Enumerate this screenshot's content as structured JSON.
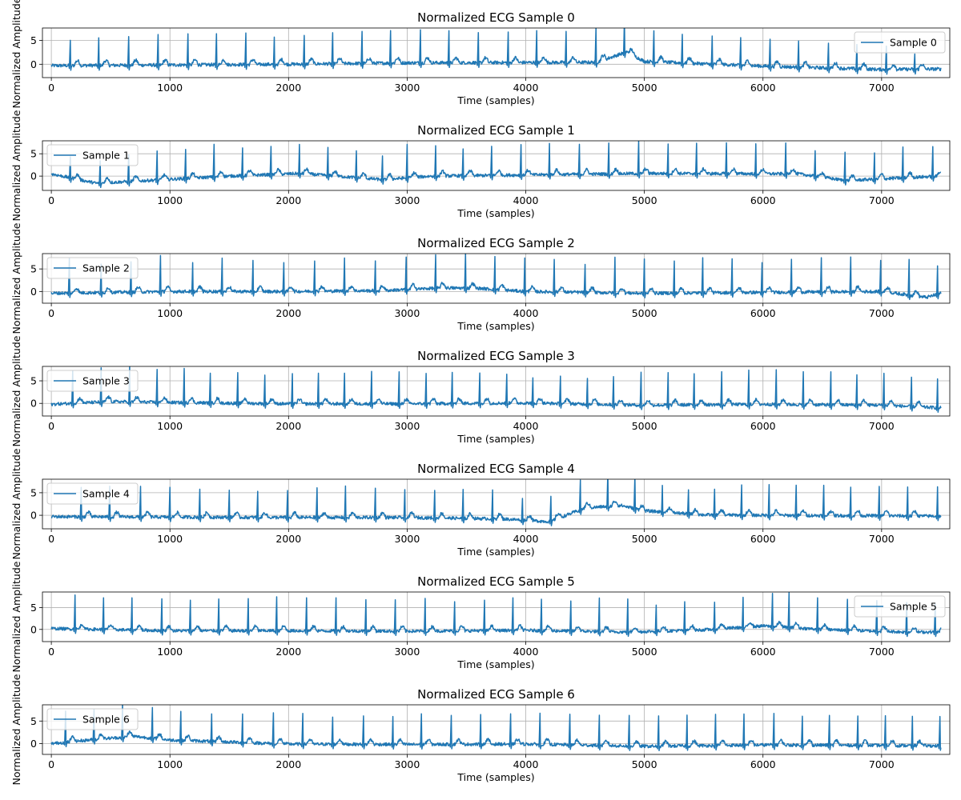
{
  "chart_data": [
    {
      "type": "line",
      "title": "Normalized ECG Sample 0",
      "xlabel": "Time (samples)",
      "ylabel": "Normalized Amplitude",
      "xlim": [
        -75,
        7575
      ],
      "ylim": [
        -2.8,
        7.6
      ],
      "xticks": [
        0,
        1000,
        2000,
        3000,
        4000,
        5000,
        6000,
        7000
      ],
      "yticks": [
        0,
        5
      ],
      "grid": true,
      "legend_position": "upper-right",
      "series": [
        {
          "name": "Sample 0",
          "color": "#1f77b4",
          "beats": [
            160,
            400,
            650,
            900,
            1150,
            1390,
            1640,
            1880,
            2130,
            2370,
            2620,
            2860,
            3110,
            3350,
            3600,
            3850,
            4090,
            4340,
            4590,
            4830,
            5080,
            5320,
            5570,
            5810,
            6060,
            6300,
            6550,
            6790,
            7040,
            7280
          ],
          "r_amp": [
            5.3,
            5.8,
            6.0,
            6.4,
            6.5,
            6.5,
            6.6,
            5.7,
            6.0,
            6.5,
            6.7,
            6.8,
            6.9,
            6.7,
            6.3,
            6.4,
            6.7,
            6.5,
            7.2,
            7.2,
            6.5,
            6.0,
            5.9,
            5.8,
            5.7,
            5.5,
            5.2,
            5.1,
            4.9,
            3.2
          ],
          "baseline": [
            [
              0,
              -0.3
            ],
            [
              2000,
              0.0
            ],
            [
              3000,
              0.3
            ],
            [
              4600,
              0.4
            ],
            [
              4850,
              2.6
            ],
            [
              5000,
              0.6
            ],
            [
              6000,
              -0.4
            ],
            [
              7000,
              -1.1
            ],
            [
              7500,
              -1.0
            ]
          ]
        }
      ]
    },
    {
      "type": "line",
      "title": "Normalized ECG Sample 1",
      "xlabel": "Time (samples)",
      "ylabel": "Normalized Amplitude",
      "xlim": [
        -75,
        7575
      ],
      "ylim": [
        -3.2,
        7.9
      ],
      "xticks": [
        0,
        1000,
        2000,
        3000,
        4000,
        5000,
        6000,
        7000
      ],
      "yticks": [
        0,
        5
      ],
      "grid": true,
      "legend_position": "upper-left",
      "series": [
        {
          "name": "Sample 1",
          "color": "#1f77b4",
          "beats": [
            160,
            410,
            650,
            890,
            1130,
            1370,
            1610,
            1850,
            2090,
            2330,
            2570,
            2790,
            3000,
            3240,
            3470,
            3710,
            3960,
            4200,
            4450,
            4700,
            4950,
            5200,
            5440,
            5690,
            5940,
            6190,
            6440,
            6690,
            6940,
            7180,
            7430
          ],
          "r_amp": [
            4.7,
            5.0,
            6.0,
            6.5,
            6.5,
            7.3,
            6.2,
            6.3,
            6.5,
            6.3,
            6.0,
            5.3,
            7.5,
            6.8,
            6.0,
            6.5,
            6.8,
            7.0,
            6.7,
            6.9,
            7.3,
            6.6,
            6.8,
            6.9,
            6.7,
            6.9,
            5.7,
            6.3,
            5.9,
            6.9,
            6.7
          ],
          "baseline": [
            [
              0,
              0.5
            ],
            [
              380,
              -1.6
            ],
            [
              1500,
              0.0
            ],
            [
              2100,
              0.6
            ],
            [
              2800,
              -0.8
            ],
            [
              3200,
              0.0
            ],
            [
              5000,
              0.6
            ],
            [
              6300,
              0.5
            ],
            [
              6700,
              -1.0
            ],
            [
              7500,
              0.0
            ]
          ]
        }
      ]
    },
    {
      "type": "line",
      "title": "Normalized ECG Sample 2",
      "xlabel": "Time (samples)",
      "ylabel": "Normalized Amplitude",
      "xlim": [
        -75,
        7575
      ],
      "ylim": [
        -2.6,
        8.4
      ],
      "xticks": [
        0,
        1000,
        2000,
        3000,
        4000,
        5000,
        6000,
        7000
      ],
      "yticks": [
        0,
        5
      ],
      "grid": true,
      "legend_position": "upper-left",
      "series": [
        {
          "name": "Sample 2",
          "color": "#1f77b4",
          "beats": [
            150,
            420,
            670,
            920,
            1190,
            1440,
            1700,
            1960,
            2220,
            2470,
            2730,
            2990,
            3240,
            3490,
            3740,
            3990,
            4240,
            4500,
            4750,
            5000,
            5250,
            5490,
            5740,
            5990,
            6240,
            6490,
            6740,
            6990,
            7230,
            7470
          ],
          "r_amp": [
            7.7,
            6.3,
            6.7,
            8.0,
            6.4,
            7.4,
            6.9,
            6.4,
            6.7,
            7.3,
            6.6,
            7.2,
            7.4,
            7.8,
            7.3,
            7.4,
            7.2,
            6.2,
            7.9,
            7.6,
            7.1,
            7.8,
            7.5,
            6.6,
            7.3,
            7.6,
            7.7,
            6.9,
            7.9,
            6.3
          ],
          "baseline": [
            [
              0,
              -0.4
            ],
            [
              1000,
              0.0
            ],
            [
              2000,
              0.0
            ],
            [
              2800,
              0.2
            ],
            [
              3300,
              0.8
            ],
            [
              3600,
              0.7
            ],
            [
              4000,
              0.0
            ],
            [
              5000,
              -0.4
            ],
            [
              6000,
              -0.2
            ],
            [
              7000,
              0.0
            ],
            [
              7380,
              -1.3
            ],
            [
              7500,
              -0.4
            ]
          ]
        }
      ]
    },
    {
      "type": "line",
      "title": "Normalized ECG Sample 3",
      "xlabel": "Time (samples)",
      "ylabel": "Normalized Amplitude",
      "xlim": [
        -75,
        7575
      ],
      "ylim": [
        -2.8,
        8.2
      ],
      "xticks": [
        0,
        1000,
        2000,
        3000,
        4000,
        5000,
        6000,
        7000
      ],
      "yticks": [
        0,
        5
      ],
      "grid": true,
      "legend_position": "upper-left",
      "series": [
        {
          "name": "Sample 3",
          "color": "#1f77b4",
          "beats": [
            180,
            420,
            660,
            890,
            1120,
            1340,
            1570,
            1800,
            2030,
            2250,
            2470,
            2700,
            2930,
            3160,
            3380,
            3610,
            3840,
            4060,
            4290,
            4520,
            4740,
            4970,
            5200,
            5420,
            5650,
            5880,
            6110,
            6340,
            6570,
            6790,
            7020,
            7250,
            7470
          ],
          "r_amp": [
            7.2,
            7.6,
            7.8,
            7.3,
            7.6,
            6.6,
            6.8,
            6.3,
            6.7,
            6.8,
            6.8,
            7.2,
            7.1,
            6.7,
            6.9,
            6.7,
            6.4,
            5.6,
            6.1,
            5.7,
            6.2,
            7.3,
            7.2,
            6.9,
            7.3,
            7.6,
            7.7,
            7.3,
            7.3,
            6.7,
            7.1,
            6.5,
            6.4
          ],
          "baseline": [
            [
              0,
              -0.2
            ],
            [
              500,
              0.4
            ],
            [
              1000,
              0.2
            ],
            [
              2000,
              -0.1
            ],
            [
              3000,
              -0.1
            ],
            [
              4000,
              0.1
            ],
            [
              5000,
              -0.4
            ],
            [
              6000,
              -0.2
            ],
            [
              7000,
              -0.4
            ],
            [
              7500,
              -1.0
            ]
          ]
        }
      ]
    },
    {
      "type": "line",
      "title": "Normalized ECG Sample 4",
      "xlabel": "Time (samples)",
      "ylabel": "Normalized Amplitude",
      "xlim": [
        -75,
        7575
      ],
      "ylim": [
        -3.0,
        8.0
      ],
      "xticks": [
        0,
        1000,
        2000,
        3000,
        4000,
        5000,
        6000,
        7000
      ],
      "yticks": [
        0,
        5
      ],
      "grid": true,
      "legend_position": "upper-left",
      "series": [
        {
          "name": "Sample 4",
          "color": "#1f77b4",
          "beats": [
            250,
            490,
            750,
            1000,
            1250,
            1500,
            1740,
            1990,
            2240,
            2480,
            2730,
            2980,
            3230,
            3470,
            3720,
            3970,
            4210,
            4460,
            4690,
            4920,
            5150,
            5370,
            5590,
            5820,
            6050,
            6280,
            6510,
            6740,
            6980,
            7220,
            7470
          ],
          "r_amp": [
            6.5,
            6.8,
            6.8,
            6.6,
            6.2,
            6.0,
            5.8,
            6.0,
            6.6,
            7.0,
            6.5,
            6.2,
            6.1,
            6.4,
            6.4,
            4.8,
            5.5,
            6.6,
            7.6,
            7.2,
            5.9,
            5.3,
            5.7,
            6.7,
            6.8,
            6.7,
            6.7,
            6.3,
            6.5,
            6.4,
            6.5
          ],
          "baseline": [
            [
              0,
              -0.3
            ],
            [
              1000,
              -0.4
            ],
            [
              2000,
              -0.5
            ],
            [
              3000,
              -0.5
            ],
            [
              3800,
              -0.8
            ],
            [
              4200,
              -1.4
            ],
            [
              4500,
              1.6
            ],
            [
              4800,
              2.2
            ],
            [
              5000,
              1.0
            ],
            [
              5500,
              0.1
            ],
            [
              6000,
              0.0
            ],
            [
              7000,
              -0.1
            ],
            [
              7500,
              -0.2
            ]
          ]
        }
      ]
    },
    {
      "type": "line",
      "title": "Normalized ECG Sample 5",
      "xlabel": "Time (samples)",
      "ylabel": "Normalized Amplitude",
      "xlim": [
        -75,
        7575
      ],
      "ylim": [
        -2.8,
        8.6
      ],
      "xticks": [
        0,
        1000,
        2000,
        3000,
        4000,
        5000,
        6000,
        7000
      ],
      "yticks": [
        0,
        5
      ],
      "grid": true,
      "legend_position": "upper-right",
      "series": [
        {
          "name": "Sample 5",
          "color": "#1f77b4",
          "beats": [
            200,
            440,
            680,
            930,
            1170,
            1410,
            1660,
            1900,
            2150,
            2400,
            2650,
            2900,
            3150,
            3400,
            3650,
            3890,
            4130,
            4380,
            4620,
            4860,
            5100,
            5340,
            5590,
            5830,
            6080,
            6220,
            6460,
            6710,
            6960,
            7210,
            7450
          ],
          "r_amp": [
            7.8,
            7.3,
            7.4,
            7.3,
            7.0,
            7.3,
            7.4,
            7.8,
            7.6,
            7.6,
            7.2,
            7.2,
            7.5,
            6.7,
            7.0,
            7.5,
            7.2,
            6.9,
            7.7,
            7.6,
            6.0,
            6.6,
            6.2,
            6.9,
            7.6,
            8.0,
            7.2,
            7.1,
            7.0,
            6.8,
            6.4
          ],
          "baseline": [
            [
              0,
              0.2
            ],
            [
              1000,
              -0.3
            ],
            [
              2000,
              -0.3
            ],
            [
              3000,
              -0.4
            ],
            [
              4000,
              -0.2
            ],
            [
              4870,
              -0.6
            ],
            [
              5500,
              -0.1
            ],
            [
              6000,
              0.8
            ],
            [
              6500,
              0.0
            ],
            [
              7200,
              -0.6
            ],
            [
              7500,
              -0.6
            ]
          ]
        }
      ]
    },
    {
      "type": "line",
      "title": "Normalized ECG Sample 6",
      "xlabel": "Time (samples)",
      "ylabel": "Normalized Amplitude",
      "xlim": [
        -75,
        7575
      ],
      "ylim": [
        -2.4,
        8.6
      ],
      "xticks": [
        0,
        1000,
        2000,
        3000,
        4000,
        5000,
        6000,
        7000
      ],
      "yticks": [
        0,
        5
      ],
      "grid": true,
      "legend_position": "upper-left",
      "series": [
        {
          "name": "Sample 6",
          "color": "#1f77b4",
          "beats": [
            120,
            360,
            600,
            850,
            1090,
            1350,
            1610,
            1870,
            2120,
            2370,
            2630,
            2880,
            3120,
            3370,
            3620,
            3870,
            4120,
            4370,
            4620,
            4870,
            5120,
            5360,
            5600,
            5840,
            6090,
            6330,
            6560,
            6800,
            7030,
            7260,
            7490
          ],
          "r_amp": [
            6.9,
            6.7,
            7.5,
            6.8,
            6.4,
            6.1,
            6.3,
            6.8,
            6.8,
            6.0,
            6.3,
            6.2,
            6.8,
            6.4,
            6.6,
            6.7,
            6.9,
            6.8,
            6.7,
            6.8,
            6.7,
            6.8,
            6.9,
            6.9,
            7.0,
            6.4,
            6.6,
            6.5,
            6.6,
            6.5,
            6.5
          ],
          "baseline": [
            [
              0,
              0.0
            ],
            [
              400,
              1.0
            ],
            [
              700,
              1.6
            ],
            [
              1000,
              0.8
            ],
            [
              2000,
              -0.1
            ],
            [
              3000,
              -0.2
            ],
            [
              4000,
              -0.1
            ],
            [
              5000,
              -0.6
            ],
            [
              6000,
              -0.3
            ],
            [
              7000,
              -0.4
            ],
            [
              7500,
              -0.5
            ]
          ]
        }
      ]
    }
  ]
}
